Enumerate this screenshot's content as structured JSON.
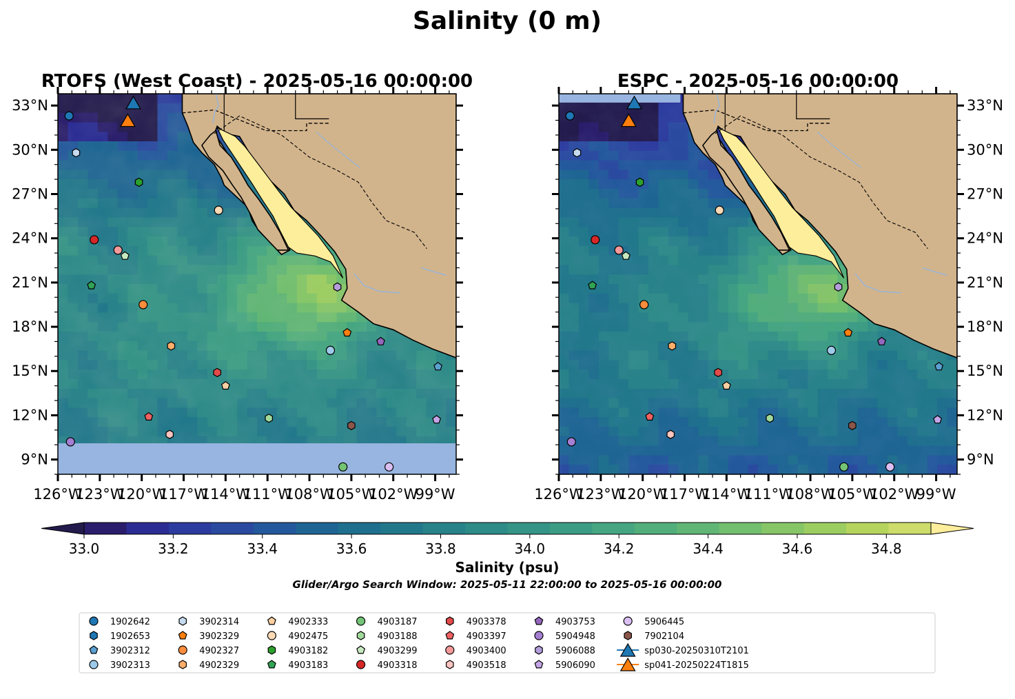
{
  "figure": {
    "title": "Salinity (0 m)",
    "window_note": "Glider/Argo Search Window: 2025-05-11 22:00:00 to 2025-05-16 00:00:00"
  },
  "chart_data": {
    "type": "heatmap",
    "panels": [
      {
        "title": "RTOFS (West Coast) - 2025-05-16 00:00:00",
        "model": "rtofs",
        "lat_label_side": "left"
      },
      {
        "title": "ESPC - 2025-05-16 00:00:00",
        "model": "espc",
        "lat_label_side": "right"
      }
    ],
    "x_range": [
      -126,
      -97.5
    ],
    "y_range": [
      8.0,
      33.8
    ],
    "x_ticks": [
      -126,
      -123,
      -120,
      -117,
      -114,
      -111,
      -108,
      -105,
      -102,
      -99
    ],
    "x_tick_labels": [
      "126°W",
      "123°W",
      "120°W",
      "117°W",
      "114°W",
      "111°W",
      "108°W",
      "105°W",
      "102°W",
      "99°W"
    ],
    "y_ticks": [
      9,
      12,
      15,
      18,
      21,
      24,
      27,
      30,
      33
    ],
    "y_tick_labels": [
      "9°N",
      "12°N",
      "15°N",
      "18°N",
      "21°N",
      "24°N",
      "27°N",
      "30°N",
      "33°N"
    ],
    "colorbar": {
      "label": "Salinity (psu)",
      "min": 33.0,
      "max": 34.9,
      "step": 0.1,
      "ticks": [
        33.0,
        33.2,
        33.4,
        33.6,
        33.8,
        34.0,
        34.2,
        34.4,
        34.6,
        34.8
      ],
      "tick_labels": [
        "33.0",
        "33.2",
        "33.4",
        "33.6",
        "33.8",
        "34.0",
        "34.2",
        "34.4",
        "34.6",
        "34.8"
      ],
      "extend": "both",
      "colors": [
        "#2a1d6b",
        "#2b2c93",
        "#2c3b9e",
        "#2a4aa0",
        "#23589c",
        "#1e6593",
        "#1f6f8e",
        "#22788b",
        "#288289",
        "#2e8b88",
        "#359486",
        "#3c9d84",
        "#45a681",
        "#52ae7b",
        "#61b675",
        "#72bf6e",
        "#86c667",
        "#9ccd61",
        "#b5d45e",
        "#cddc6a"
      ],
      "under_color": "#241b4d",
      "over_color": "#fdee9b"
    },
    "land_color": "#d2b48c",
    "missing_color": "#97b5e0",
    "river_color": "#9bb5d4",
    "legend": {
      "placement": "lower-center",
      "entries": [
        {
          "name": "1902642",
          "marker": "circle",
          "color": "#1f77b4",
          "lon": -125.2,
          "lat": 32.3
        },
        {
          "name": "1902653",
          "marker": "hexagon",
          "color": "#1f77b4"
        },
        {
          "name": "3902312",
          "marker": "pentagon",
          "color": "#5ba0d0",
          "lon": -98.8,
          "lat": 15.3
        },
        {
          "name": "3902313",
          "marker": "circle",
          "color": "#9ecae9",
          "lon": -106.5,
          "lat": 16.4
        },
        {
          "name": "3902314",
          "marker": "hexagon",
          "color": "#c6dbef",
          "lon": -124.7,
          "lat": 29.8
        },
        {
          "name": "3902329",
          "marker": "pentagon",
          "color": "#ff7f0e",
          "lon": -105.3,
          "lat": 17.6
        },
        {
          "name": "4902327",
          "marker": "circle",
          "color": "#fd8d3c",
          "lon": -119.9,
          "lat": 19.5
        },
        {
          "name": "4902329",
          "marker": "hexagon",
          "color": "#fdae6b",
          "lon": -117.9,
          "lat": 16.7
        },
        {
          "name": "4902333",
          "marker": "pentagon",
          "color": "#fdd0a2",
          "lon": -114.0,
          "lat": 14.0
        },
        {
          "name": "4902475",
          "marker": "circle",
          "color": "#fdd9b5",
          "lon": -114.5,
          "lat": 25.9
        },
        {
          "name": "4903182",
          "marker": "hexagon",
          "color": "#2ca02c",
          "lon": -120.2,
          "lat": 27.8
        },
        {
          "name": "4903183",
          "marker": "pentagon",
          "color": "#31a354",
          "lon": -123.6,
          "lat": 20.8
        },
        {
          "name": "4903187",
          "marker": "circle",
          "color": "#74c476",
          "lon": -105.6,
          "lat": 8.5
        },
        {
          "name": "4903188",
          "marker": "hexagon",
          "color": "#a1d99b",
          "lon": -110.9,
          "lat": 11.8
        },
        {
          "name": "4903299",
          "marker": "pentagon",
          "color": "#c7e9c0",
          "lon": -121.2,
          "lat": 22.8
        },
        {
          "name": "4903318",
          "marker": "circle",
          "color": "#d62728",
          "lon": -123.4,
          "lat": 23.9
        },
        {
          "name": "4903378",
          "marker": "hexagon",
          "color": "#e34a4a",
          "lon": -114.6,
          "lat": 14.9
        },
        {
          "name": "4903397",
          "marker": "pentagon",
          "color": "#f06262",
          "lon": -119.5,
          "lat": 11.9
        },
        {
          "name": "4903400",
          "marker": "circle",
          "color": "#f4999a",
          "lon": -121.7,
          "lat": 23.2
        },
        {
          "name": "4903518",
          "marker": "hexagon",
          "color": "#fcc5c0",
          "lon": -118.0,
          "lat": 10.7
        },
        {
          "name": "4903753",
          "marker": "pentagon",
          "color": "#9467bd",
          "lon": -102.9,
          "lat": 17.0
        },
        {
          "name": "5904948",
          "marker": "circle",
          "color": "#a57fd1",
          "lon": -125.1,
          "lat": 10.2
        },
        {
          "name": "5906088",
          "marker": "hexagon",
          "color": "#b39ddb",
          "lon": -106.0,
          "lat": 20.7
        },
        {
          "name": "5906090",
          "marker": "pentagon",
          "color": "#c5a5e8",
          "lon": -98.9,
          "lat": 11.7
        },
        {
          "name": "5906445",
          "marker": "circle",
          "color": "#dbbff3",
          "lon": -102.3,
          "lat": 8.5
        },
        {
          "name": "7902104",
          "marker": "hexagon",
          "color": "#8c564b",
          "lon": -105.0,
          "lat": 11.3
        },
        {
          "name": "sp030-20250310T2101",
          "marker": "triangle",
          "color": "#1f77b4",
          "line": true,
          "lon": -120.6,
          "lat": 33.2
        },
        {
          "name": "sp041-20250224T1815",
          "marker": "triangle",
          "color": "#ff7f0e",
          "line": true,
          "lon": -121.0,
          "lat": 32.0
        }
      ]
    }
  }
}
